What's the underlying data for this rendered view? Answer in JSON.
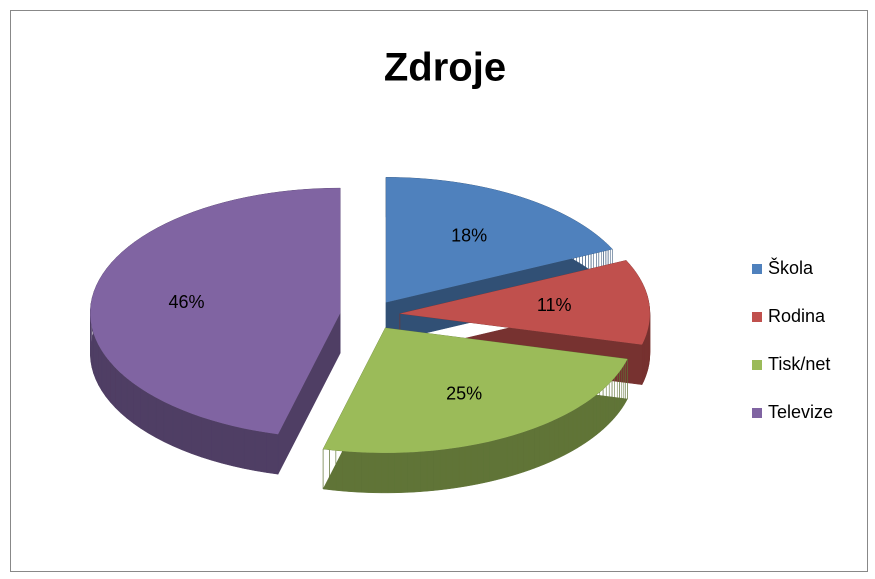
{
  "chart_data": {
    "type": "pie",
    "title": "Zdroje",
    "categories": [
      "Škola",
      "Rodina",
      "Tisk/net",
      "Televize"
    ],
    "values": [
      18,
      11,
      25,
      46
    ],
    "value_labels": [
      "18%",
      "11%",
      "25%",
      "46%"
    ],
    "colors": [
      "#4f81bd",
      "#c0504d",
      "#9bbb59",
      "#8064a2"
    ],
    "legend": "right"
  }
}
